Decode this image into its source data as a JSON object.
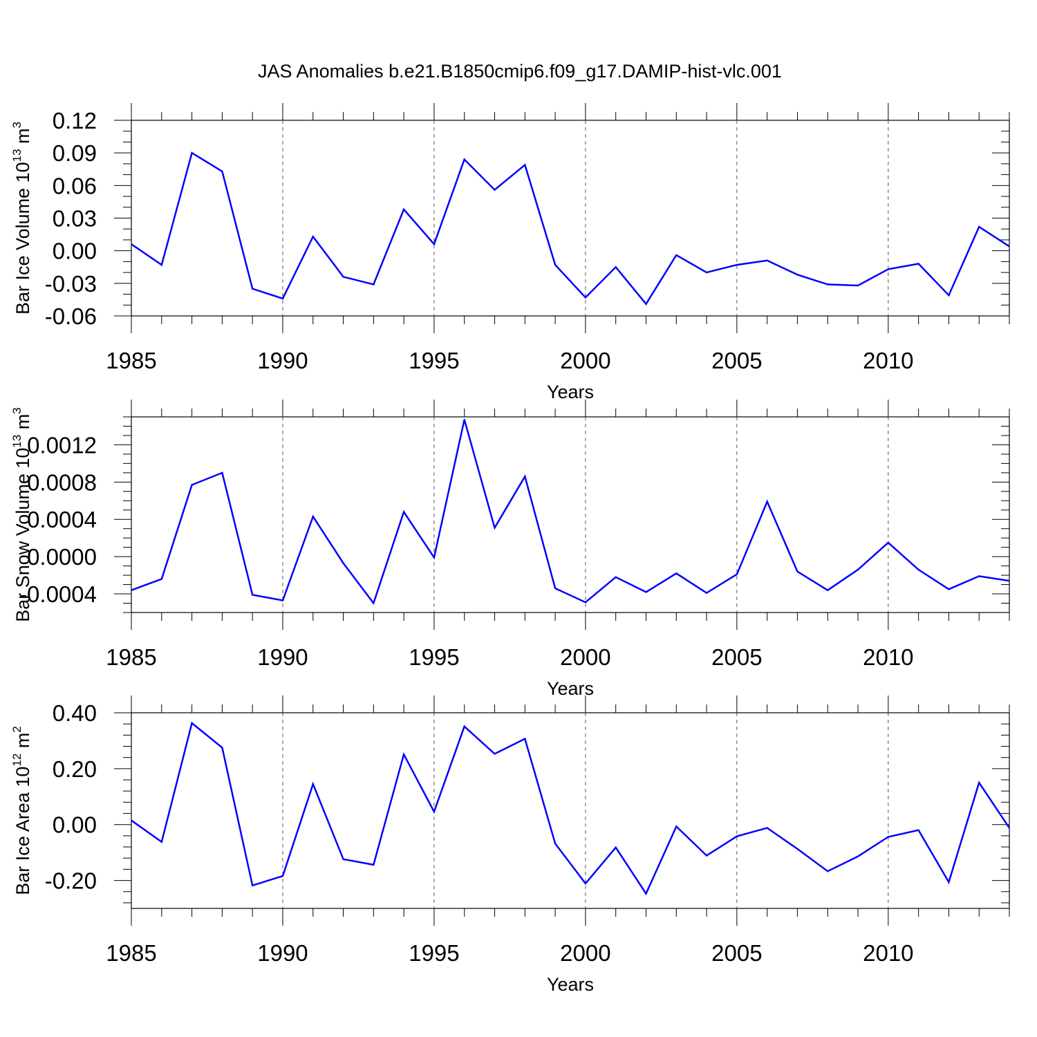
{
  "title": "JAS Anomalies b.e21.B1850cmip6.f09_g17.DAMIP-hist-vlc.001",
  "line_color": "#0000ff",
  "chart_data": [
    {
      "type": "line",
      "ylabel_parts": [
        "Bar Ice Volume 10",
        "13",
        " m",
        "3"
      ],
      "xlabel": "Years",
      "xlim": [
        1985,
        2014
      ],
      "ylim": [
        -0.06,
        0.12
      ],
      "x_ticks": [
        1985,
        1990,
        1995,
        2000,
        2005,
        2010
      ],
      "x_tick_labels": [
        "1985",
        "1990",
        "1995",
        "2000",
        "2005",
        "2010"
      ],
      "y_ticks": [
        -0.06,
        -0.03,
        0.0,
        0.03,
        0.06,
        0.09,
        0.12
      ],
      "y_tick_labels": [
        "-0.06",
        "-0.03",
        "0.00",
        "0.03",
        "0.06",
        "0.09",
        "0.12"
      ],
      "y_minor_step": 0.01,
      "grid": "vertical dashed at major x ticks",
      "series": [
        {
          "name": "Bar Ice Volume",
          "x": [
            1985,
            1986,
            1987,
            1988,
            1989,
            1990,
            1991,
            1992,
            1993,
            1994,
            1995,
            1996,
            1997,
            1998,
            1999,
            2000,
            2001,
            2002,
            2003,
            2004,
            2005,
            2006,
            2007,
            2008,
            2009,
            2010,
            2011,
            2012,
            2013,
            2014
          ],
          "values": [
            0.006,
            -0.013,
            0.09,
            0.073,
            -0.035,
            -0.044,
            0.013,
            -0.024,
            -0.031,
            0.038,
            0.006,
            0.084,
            0.056,
            0.079,
            -0.013,
            -0.043,
            -0.015,
            -0.049,
            -0.004,
            -0.02,
            -0.013,
            -0.009,
            -0.022,
            -0.031,
            -0.032,
            -0.017,
            -0.012,
            -0.041,
            0.022,
            0.004
          ]
        }
      ]
    },
    {
      "type": "line",
      "ylabel_parts": [
        "Bar Snow Volume 10",
        "13",
        " m",
        "3"
      ],
      "xlabel": "Years",
      "xlim": [
        1985,
        2014
      ],
      "ylim": [
        -0.0006,
        0.0015
      ],
      "x_ticks": [
        1985,
        1990,
        1995,
        2000,
        2005,
        2010
      ],
      "x_tick_labels": [
        "1985",
        "1990",
        "1995",
        "2000",
        "2005",
        "2010"
      ],
      "y_ticks": [
        -0.0004,
        0.0,
        0.0004,
        0.0008,
        0.0012
      ],
      "y_tick_labels": [
        "-0.0004",
        "0.0000",
        "0.0004",
        "0.0008",
        "0.0012"
      ],
      "y_minor_step": 0.0001,
      "grid": "vertical dashed at major x ticks",
      "series": [
        {
          "name": "Bar Snow Volume",
          "x": [
            1985,
            1986,
            1987,
            1988,
            1989,
            1990,
            1991,
            1992,
            1993,
            1994,
            1995,
            1996,
            1997,
            1998,
            1999,
            2000,
            2001,
            2002,
            2003,
            2004,
            2005,
            2006,
            2007,
            2008,
            2009,
            2010,
            2011,
            2012,
            2013,
            2014
          ],
          "values": [
            -0.00036,
            -0.00024,
            0.00077,
            0.0009,
            -0.00041,
            -0.00047,
            0.00043,
            -7e-05,
            -0.0005,
            0.00048,
            -1e-05,
            0.00147,
            0.00031,
            0.00086,
            -0.00034,
            -0.00049,
            -0.00022,
            -0.00038,
            -0.00018,
            -0.00039,
            -0.00019,
            0.00059,
            -0.00016,
            -0.00036,
            -0.00014,
            0.00015,
            -0.00014,
            -0.00035,
            -0.00021,
            -0.00026
          ]
        }
      ]
    },
    {
      "type": "line",
      "ylabel_parts": [
        "Bar Ice Area 10",
        "12",
        " m",
        "2"
      ],
      "xlabel": "Years",
      "xlim": [
        1985,
        2014
      ],
      "ylim": [
        -0.3,
        0.4
      ],
      "x_ticks": [
        1985,
        1990,
        1995,
        2000,
        2005,
        2010
      ],
      "x_tick_labels": [
        "1985",
        "1990",
        "1995",
        "2000",
        "2005",
        "2010"
      ],
      "y_ticks": [
        -0.2,
        0.0,
        0.2,
        0.4
      ],
      "y_tick_labels": [
        "-0.20",
        "0.00",
        "0.20",
        "0.40"
      ],
      "y_minor_step": 0.04,
      "grid": "vertical dashed at major x ticks",
      "series": [
        {
          "name": "Bar Ice Area",
          "x": [
            1985,
            1986,
            1987,
            1988,
            1989,
            1990,
            1991,
            1992,
            1993,
            1994,
            1995,
            1996,
            1997,
            1998,
            1999,
            2000,
            2001,
            2002,
            2003,
            2004,
            2005,
            2006,
            2007,
            2008,
            2009,
            2010,
            2011,
            2012,
            2013,
            2014
          ],
          "values": [
            0.015,
            -0.062,
            0.363,
            0.275,
            -0.218,
            -0.184,
            0.145,
            -0.124,
            -0.144,
            0.251,
            0.046,
            0.351,
            0.253,
            0.307,
            -0.068,
            -0.211,
            -0.082,
            -0.247,
            -0.007,
            -0.111,
            -0.042,
            -0.012,
            -0.087,
            -0.167,
            -0.114,
            -0.044,
            -0.02,
            -0.206,
            0.15,
            -0.012
          ]
        }
      ]
    }
  ]
}
